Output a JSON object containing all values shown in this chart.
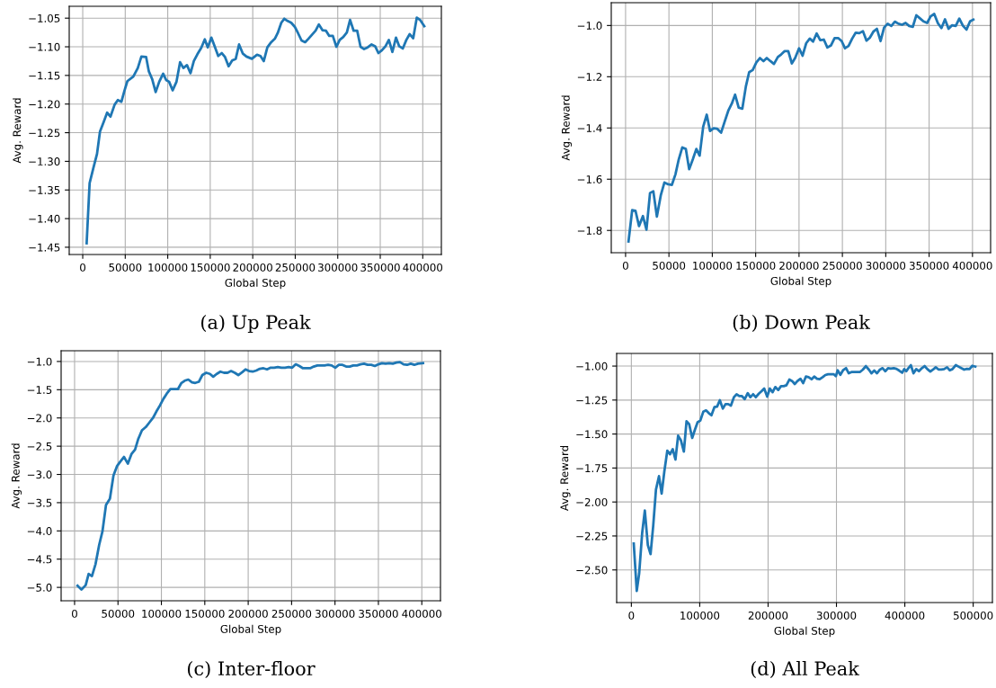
{
  "chart_data": [
    {
      "type": "line",
      "xlabel": "Global Step",
      "ylabel": "Avg. Reward",
      "annotations": [
        "(a) Up Peak"
      ],
      "color": "#1f77b4",
      "grid": true,
      "xlim": [
        -15900,
        421900
      ],
      "ylim": [
        -1.4627,
        -1.0293
      ],
      "xticks": [
        0,
        50000,
        100000,
        150000,
        200000,
        250000,
        300000,
        350000,
        400000
      ],
      "yticks": [
        {
          "value": -1.45,
          "label": "−1.45"
        },
        {
          "value": -1.4,
          "label": "−1.40"
        },
        {
          "value": -1.35,
          "label": "−1.35"
        },
        {
          "value": -1.3,
          "label": "−1.30"
        },
        {
          "value": -1.25,
          "label": "−1.25"
        },
        {
          "value": -1.2,
          "label": "−1.20"
        },
        {
          "value": -1.15,
          "label": "−1.15"
        },
        {
          "value": -1.1,
          "label": "−1.10"
        },
        {
          "value": -1.05,
          "label": "−1.05"
        }
      ],
      "x": [
        4600,
        8100,
        12300,
        16800,
        20300,
        24500,
        28700,
        32600,
        37500,
        41300,
        45500,
        49000,
        52500,
        59500,
        64800,
        69000,
        74600,
        77800,
        81600,
        85800,
        90000,
        94600,
        98100,
        101600,
        105800,
        110300,
        114500,
        118400,
        122600,
        126800,
        130700,
        134900,
        139400,
        143600,
        147100,
        151300,
        155200,
        159400,
        163600,
        167400,
        171600,
        175800,
        180000,
        183900,
        188400,
        192600,
        199000,
        205000,
        209100,
        213000,
        217200,
        221700,
        226000,
        229400,
        233600,
        237100,
        241000,
        245200,
        249400,
        253200,
        257400,
        261600,
        265500,
        269700,
        273900,
        277800,
        282000,
        286200,
        290000,
        294200,
        298400,
        302300,
        306500,
        310700,
        314500,
        318700,
        322900,
        326800,
        331000,
        335200,
        339800,
        344000,
        347800,
        352000,
        356200,
        360100,
        364300,
        368500,
        372300,
        376500,
        380700,
        384600,
        388800,
        393000,
        396800,
        401800
      ],
      "values": [
        -1.443,
        -1.338,
        -1.313,
        -1.287,
        -1.248,
        -1.232,
        -1.215,
        -1.222,
        -1.201,
        -1.193,
        -1.196,
        -1.177,
        -1.16,
        -1.152,
        -1.137,
        -1.117,
        -1.118,
        -1.143,
        -1.156,
        -1.179,
        -1.161,
        -1.147,
        -1.158,
        -1.161,
        -1.176,
        -1.161,
        -1.127,
        -1.137,
        -1.132,
        -1.146,
        -1.125,
        -1.113,
        -1.102,
        -1.087,
        -1.101,
        -1.084,
        -1.099,
        -1.116,
        -1.111,
        -1.118,
        -1.134,
        -1.124,
        -1.121,
        -1.096,
        -1.112,
        -1.117,
        -1.121,
        -1.114,
        -1.116,
        -1.125,
        -1.101,
        -1.092,
        -1.086,
        -1.076,
        -1.058,
        -1.051,
        -1.055,
        -1.058,
        -1.065,
        -1.076,
        -1.089,
        -1.092,
        -1.086,
        -1.079,
        -1.072,
        -1.061,
        -1.071,
        -1.072,
        -1.081,
        -1.081,
        -1.1,
        -1.088,
        -1.083,
        -1.075,
        -1.053,
        -1.072,
        -1.072,
        -1.1,
        -1.104,
        -1.101,
        -1.096,
        -1.099,
        -1.111,
        -1.106,
        -1.099,
        -1.088,
        -1.109,
        -1.084,
        -1.099,
        -1.103,
        -1.088,
        -1.078,
        -1.085,
        -1.049,
        -1.053,
        -1.064
      ]
    },
    {
      "type": "line",
      "xlabel": "Global Step",
      "ylabel": "Avg. Reward",
      "annotations": [
        "(b) Down Peak"
      ],
      "color": "#1f77b4",
      "grid": true,
      "xlim": [
        -16500,
        420900
      ],
      "ylim": [
        -1.887,
        -0.911
      ],
      "xticks": [
        0,
        50000,
        100000,
        150000,
        200000,
        250000,
        300000,
        350000,
        400000
      ],
      "yticks": [
        {
          "value": -1.8,
          "label": "−1.8"
        },
        {
          "value": -1.6,
          "label": "−1.6"
        },
        {
          "value": -1.4,
          "label": "−1.4"
        },
        {
          "value": -1.2,
          "label": "−1.2"
        },
        {
          "value": -1.0,
          "label": "−1.0"
        }
      ],
      "x": [
        3400,
        7600,
        11400,
        15500,
        20000,
        24100,
        28200,
        32000,
        36100,
        40600,
        44800,
        49200,
        53400,
        57500,
        61300,
        65400,
        69500,
        73300,
        77500,
        81600,
        85400,
        89500,
        93600,
        97400,
        101500,
        105700,
        110200,
        114300,
        118400,
        122500,
        126300,
        130500,
        134600,
        138700,
        142500,
        146600,
        150800,
        154900,
        159000,
        162800,
        167000,
        171100,
        175600,
        179400,
        183500,
        187600,
        191700,
        195500,
        200000,
        204100,
        208300,
        212400,
        216200,
        220300,
        224400,
        228600,
        232700,
        236800,
        241000,
        245100,
        249200,
        253000,
        257100,
        261300,
        265400,
        269500,
        273700,
        277800,
        281600,
        285700,
        289800,
        294000,
        298100,
        302200,
        306400,
        310500,
        314600,
        318800,
        322900,
        327000,
        331200,
        335300,
        339400,
        343500,
        347700,
        351800,
        355900,
        360100,
        364200,
        368300,
        372400,
        376600,
        380700,
        384800,
        389000,
        393100,
        397200,
        401000
      ],
      "values": [
        -1.843,
        -1.721,
        -1.723,
        -1.783,
        -1.744,
        -1.797,
        -1.654,
        -1.647,
        -1.746,
        -1.663,
        -1.613,
        -1.62,
        -1.622,
        -1.581,
        -1.523,
        -1.476,
        -1.482,
        -1.561,
        -1.523,
        -1.482,
        -1.508,
        -1.395,
        -1.348,
        -1.412,
        -1.401,
        -1.403,
        -1.418,
        -1.375,
        -1.333,
        -1.305,
        -1.27,
        -1.321,
        -1.325,
        -1.238,
        -1.182,
        -1.174,
        -1.144,
        -1.127,
        -1.139,
        -1.127,
        -1.139,
        -1.15,
        -1.123,
        -1.113,
        -1.1,
        -1.1,
        -1.148,
        -1.127,
        -1.089,
        -1.118,
        -1.069,
        -1.051,
        -1.063,
        -1.031,
        -1.057,
        -1.055,
        -1.086,
        -1.078,
        -1.049,
        -1.049,
        -1.061,
        -1.089,
        -1.08,
        -1.051,
        -1.028,
        -1.03,
        -1.022,
        -1.059,
        -1.048,
        -1.024,
        -1.013,
        -1.061,
        -1.008,
        -0.993,
        -1.002,
        -0.985,
        -0.993,
        -0.997,
        -0.99,
        -1.002,
        -1.005,
        -0.96,
        -0.972,
        -0.984,
        -0.99,
        -0.964,
        -0.955,
        -0.991,
        -1.01,
        -0.976,
        -1.013,
        -0.999,
        -1.002,
        -0.973,
        -1.001,
        -1.016,
        -0.984,
        -0.977
      ]
    },
    {
      "type": "line",
      "xlabel": "Global Step",
      "ylabel": "Avg. Reward",
      "annotations": [
        "(c) Inter-floor"
      ],
      "color": "#1f77b4",
      "grid": true,
      "xlim": [
        -15500,
        421500
      ],
      "ylim": [
        -5.237,
        -0.81
      ],
      "xticks": [
        0,
        50000,
        100000,
        150000,
        200000,
        250000,
        300000,
        350000,
        400000
      ],
      "yticks": [
        {
          "value": -5.0,
          "label": "−5.0"
        },
        {
          "value": -4.5,
          "label": "−4.5"
        },
        {
          "value": -4.0,
          "label": "−4.0"
        },
        {
          "value": -3.5,
          "label": "−3.5"
        },
        {
          "value": -3.0,
          "label": "−3.0"
        },
        {
          "value": -2.5,
          "label": "−2.5"
        },
        {
          "value": -2.0,
          "label": "−2.0"
        },
        {
          "value": -1.5,
          "label": "−1.5"
        },
        {
          "value": -1.0,
          "label": "−1.0"
        }
      ],
      "x": [
        3400,
        7900,
        12800,
        16200,
        20000,
        24100,
        28300,
        32100,
        36200,
        40700,
        44800,
        49000,
        52800,
        56900,
        61400,
        65500,
        69700,
        73400,
        77600,
        82100,
        86200,
        90300,
        94100,
        98300,
        102400,
        106200,
        110300,
        114800,
        119000,
        123100,
        126900,
        131000,
        135200,
        139000,
        143100,
        147200,
        151700,
        155900,
        159700,
        163800,
        168000,
        172100,
        176200,
        180300,
        184500,
        188600,
        193100,
        196900,
        201000,
        205200,
        209300,
        213400,
        217600,
        221700,
        225900,
        230000,
        234100,
        238300,
        242400,
        246600,
        250700,
        254800,
        259000,
        263100,
        267200,
        271400,
        275500,
        279700,
        283800,
        287900,
        292100,
        296200,
        300300,
        304500,
        308600,
        312800,
        316900,
        321000,
        325200,
        329300,
        333400,
        337600,
        341700,
        345900,
        350000,
        354100,
        358300,
        362400,
        366600,
        370700,
        374800,
        379000,
        383100,
        387200,
        391400,
        395500,
        401400
      ],
      "values": [
        -4.97,
        -5.04,
        -4.96,
        -4.76,
        -4.8,
        -4.59,
        -4.25,
        -4.01,
        -3.54,
        -3.43,
        -3.02,
        -2.85,
        -2.77,
        -2.69,
        -2.81,
        -2.64,
        -2.56,
        -2.37,
        -2.22,
        -2.16,
        -2.08,
        -2.0,
        -1.89,
        -1.78,
        -1.66,
        -1.57,
        -1.49,
        -1.49,
        -1.49,
        -1.38,
        -1.34,
        -1.32,
        -1.37,
        -1.38,
        -1.36,
        -1.24,
        -1.2,
        -1.22,
        -1.27,
        -1.22,
        -1.18,
        -1.2,
        -1.2,
        -1.17,
        -1.2,
        -1.24,
        -1.19,
        -1.14,
        -1.17,
        -1.18,
        -1.16,
        -1.13,
        -1.12,
        -1.14,
        -1.11,
        -1.11,
        -1.1,
        -1.11,
        -1.11,
        -1.1,
        -1.11,
        -1.05,
        -1.08,
        -1.12,
        -1.12,
        -1.12,
        -1.09,
        -1.07,
        -1.07,
        -1.07,
        -1.06,
        -1.07,
        -1.11,
        -1.06,
        -1.06,
        -1.09,
        -1.09,
        -1.07,
        -1.07,
        -1.05,
        -1.04,
        -1.06,
        -1.06,
        -1.08,
        -1.05,
        -1.03,
        -1.04,
        -1.03,
        -1.04,
        -1.02,
        -1.01,
        -1.05,
        -1.06,
        -1.04,
        -1.06,
        -1.04,
        -1.03
      ]
    },
    {
      "type": "line",
      "xlabel": "Global Step",
      "ylabel": "Avg. Reward",
      "annotations": [
        "(d) All Peak"
      ],
      "color": "#1f77b4",
      "grid": true,
      "xlim": [
        -21500,
        528100
      ],
      "ylim": [
        -2.74,
        -0.907
      ],
      "xticks": [
        0,
        100000,
        200000,
        300000,
        400000,
        500000
      ],
      "yticks": [
        {
          "value": -2.5,
          "label": "−2.50"
        },
        {
          "value": -2.25,
          "label": "−2.25"
        },
        {
          "value": -2.0,
          "label": "−2.00"
        },
        {
          "value": -1.75,
          "label": "−1.75"
        },
        {
          "value": -1.5,
          "label": "−1.50"
        },
        {
          "value": -1.25,
          "label": "−1.25"
        },
        {
          "value": -1.0,
          "label": "−1.00"
        }
      ],
      "x": [
        3500,
        7900,
        11400,
        15800,
        19700,
        24100,
        28100,
        32000,
        36000,
        40400,
        44300,
        48200,
        52600,
        56600,
        60500,
        64500,
        68400,
        72400,
        76800,
        80700,
        84600,
        89000,
        93000,
        96900,
        100900,
        105300,
        109200,
        113200,
        117100,
        121500,
        125400,
        129400,
        133800,
        137700,
        141700,
        145600,
        150000,
        153900,
        157900,
        161800,
        165800,
        170200,
        174100,
        178100,
        182000,
        186400,
        190400,
        194300,
        198700,
        202600,
        206600,
        210500,
        214900,
        218900,
        222800,
        226800,
        231100,
        235100,
        239000,
        243000,
        247400,
        251300,
        255300,
        259200,
        263600,
        267500,
        271500,
        275400,
        279800,
        283800,
        287700,
        291700,
        296100,
        299100,
        301800,
        305700,
        309600,
        314000,
        318000,
        321900,
        325900,
        330300,
        334200,
        338600,
        343000,
        347400,
        351300,
        355300,
        359200,
        363600,
        367500,
        371500,
        375400,
        379400,
        383800,
        387700,
        391700,
        396100,
        399100,
        402200,
        405300,
        408800,
        412700,
        416700,
        420600,
        425000,
        428900,
        432900,
        437300,
        441200,
        445200,
        449600,
        453500,
        457500,
        461800,
        465800,
        469700,
        474600,
        478500,
        482500,
        486800,
        490800,
        494700,
        498700,
        503100
      ],
      "values": [
        -2.306,
        -2.655,
        -2.527,
        -2.229,
        -2.063,
        -2.317,
        -2.383,
        -2.174,
        -1.909,
        -1.81,
        -1.938,
        -1.777,
        -1.622,
        -1.649,
        -1.611,
        -1.688,
        -1.512,
        -1.545,
        -1.629,
        -1.406,
        -1.428,
        -1.529,
        -1.468,
        -1.413,
        -1.401,
        -1.335,
        -1.326,
        -1.346,
        -1.362,
        -1.302,
        -1.298,
        -1.251,
        -1.313,
        -1.28,
        -1.28,
        -1.291,
        -1.229,
        -1.207,
        -1.221,
        -1.221,
        -1.243,
        -1.199,
        -1.229,
        -1.207,
        -1.229,
        -1.203,
        -1.185,
        -1.165,
        -1.225,
        -1.165,
        -1.192,
        -1.154,
        -1.176,
        -1.148,
        -1.148,
        -1.141,
        -1.099,
        -1.11,
        -1.132,
        -1.11,
        -1.093,
        -1.126,
        -1.077,
        -1.082,
        -1.097,
        -1.077,
        -1.093,
        -1.097,
        -1.082,
        -1.066,
        -1.06,
        -1.06,
        -1.06,
        -1.075,
        -1.031,
        -1.064,
        -1.031,
        -1.015,
        -1.053,
        -1.044,
        -1.044,
        -1.044,
        -1.044,
        -1.026,
        -1.0,
        -1.026,
        -1.053,
        -1.033,
        -1.053,
        -1.026,
        -1.015,
        -1.038,
        -1.015,
        -1.018,
        -1.015,
        -1.02,
        -1.033,
        -1.049,
        -1.022,
        -1.038,
        -1.015,
        -0.993,
        -1.053,
        -1.022,
        -1.038,
        -1.015,
        -1.0,
        -1.022,
        -1.04,
        -1.026,
        -1.009,
        -1.026,
        -1.026,
        -1.022,
        -1.009,
        -1.031,
        -1.022,
        -0.993,
        -1.004,
        -1.015,
        -1.026,
        -1.02,
        -1.022,
        -0.998,
        -1.004
      ]
    }
  ]
}
